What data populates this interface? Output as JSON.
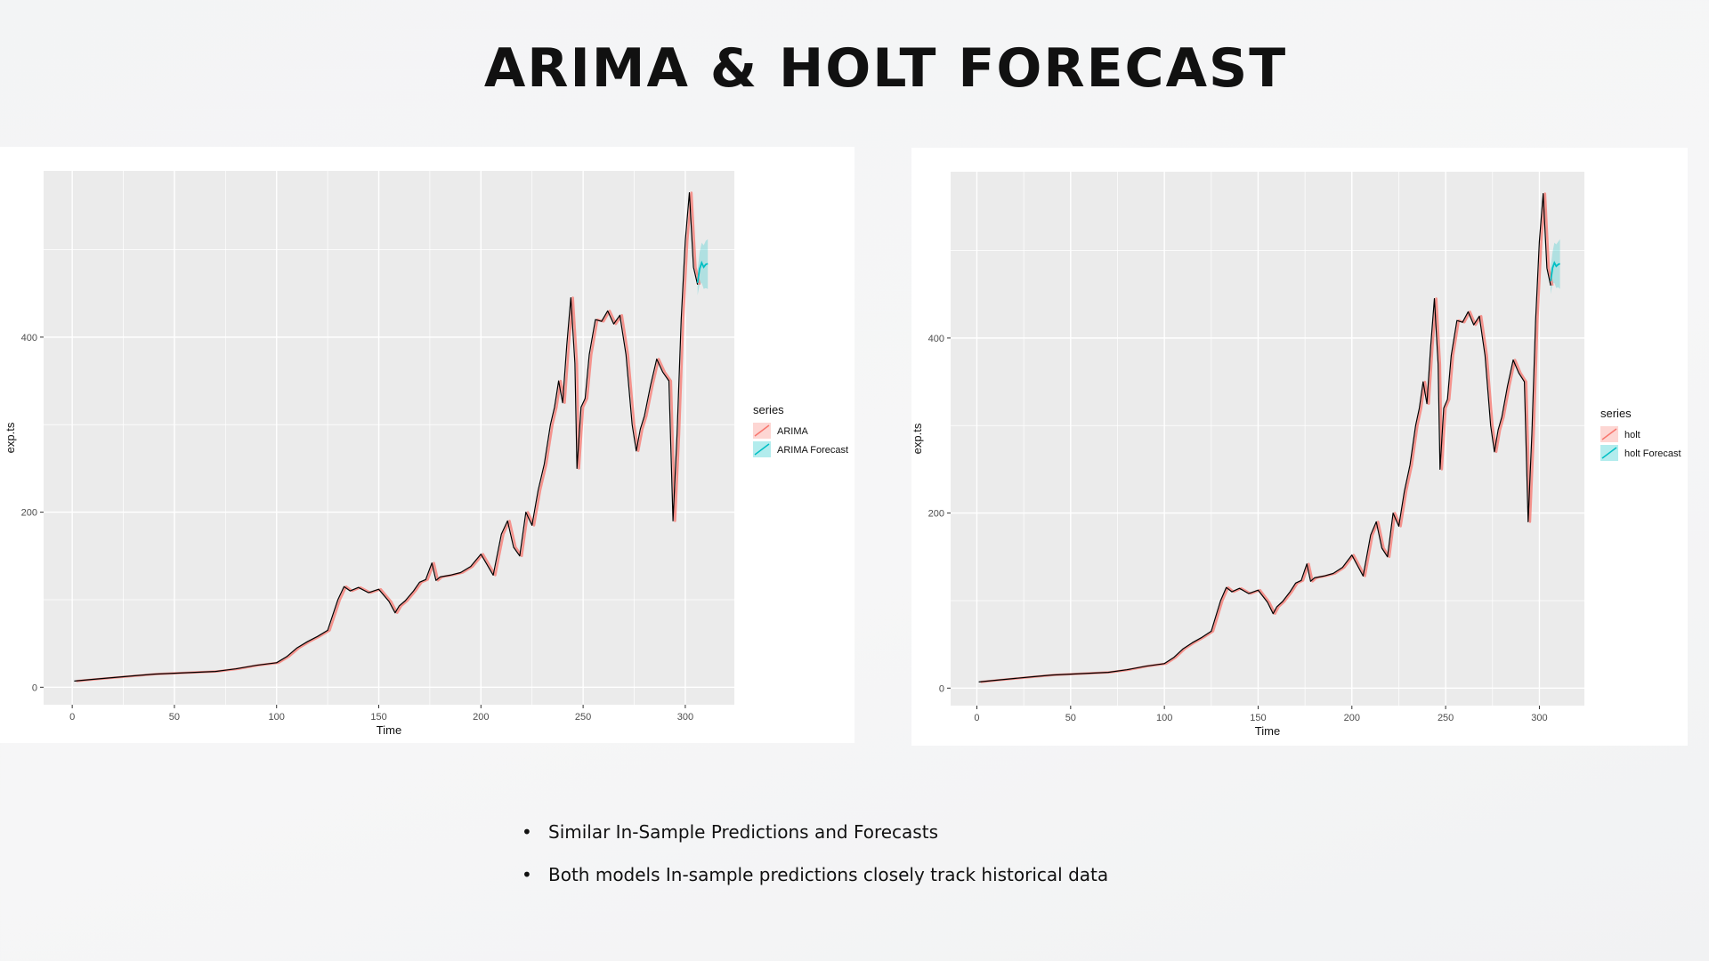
{
  "slide": {
    "title": "ARIMA & HOLT FORECAST",
    "bullets": [
      "Similar In-Sample Predictions and Forecasts",
      "Both models In-sample predictions closely track historical data"
    ]
  },
  "colors": {
    "fitted": "#F8766D",
    "forecast": "#00BFC4",
    "actual": "#000000",
    "panel_bg": "#EBEBEB",
    "grid": "#FFFFFF"
  },
  "chart_data": [
    {
      "type": "line",
      "xlabel": "Time",
      "ylabel": "exp.ts",
      "xlim": [
        -14,
        324
      ],
      "ylim": [
        -20,
        590
      ],
      "x_ticks": [
        0,
        50,
        100,
        150,
        200,
        250,
        300
      ],
      "y_ticks": [
        0,
        200,
        400
      ],
      "grid": true,
      "legend": {
        "title": "series",
        "position": "right",
        "entries": [
          "ARIMA",
          "ARIMA Forecast"
        ]
      },
      "actual": {
        "x": [
          1,
          10,
          20,
          30,
          40,
          50,
          60,
          70,
          80,
          90,
          100,
          105,
          110,
          115,
          120,
          125,
          130,
          133,
          136,
          140,
          145,
          150,
          155,
          158,
          160,
          163,
          167,
          170,
          173,
          176,
          178,
          180,
          185,
          190,
          195,
          200,
          203,
          206,
          210,
          213,
          216,
          219,
          222,
          225,
          228,
          231,
          234,
          236,
          238,
          240,
          242,
          244,
          246,
          247,
          249,
          251,
          253,
          256,
          259,
          262,
          265,
          268,
          271,
          274,
          276,
          278,
          280,
          283,
          286,
          289,
          292,
          294,
          296,
          298,
          300,
          302,
          304,
          306
        ],
        "y": [
          7,
          9,
          11,
          13,
          15,
          16,
          17,
          18,
          21,
          25,
          28,
          35,
          45,
          52,
          58,
          65,
          100,
          115,
          110,
          114,
          108,
          112,
          98,
          85,
          93,
          99,
          110,
          120,
          123,
          142,
          122,
          126,
          128,
          131,
          138,
          152,
          140,
          128,
          175,
          190,
          160,
          150,
          200,
          185,
          225,
          255,
          300,
          320,
          350,
          325,
          390,
          445,
          370,
          250,
          320,
          330,
          380,
          420,
          418,
          430,
          415,
          425,
          380,
          300,
          270,
          295,
          310,
          345,
          375,
          360,
          350,
          190,
          290,
          420,
          510,
          565,
          480,
          460
        ]
      },
      "fitted": {
        "x": [
          2,
          11,
          21,
          31,
          41,
          51,
          61,
          71,
          81,
          91,
          101,
          106,
          111,
          116,
          121,
          126,
          131,
          134,
          137,
          141,
          146,
          151,
          156,
          159,
          161,
          164,
          168,
          171,
          174,
          177,
          179,
          181,
          186,
          191,
          196,
          201,
          204,
          207,
          211,
          214,
          217,
          220,
          223,
          226,
          229,
          232,
          235,
          237,
          239,
          241,
          243,
          245,
          247,
          248,
          250,
          252,
          254,
          257,
          260,
          263,
          266,
          269,
          272,
          275,
          277,
          279,
          281,
          284,
          287,
          290,
          293,
          295,
          297,
          299,
          301,
          303,
          305,
          307
        ],
        "y": [
          7,
          9,
          11,
          13,
          15,
          16,
          17,
          18,
          21,
          25,
          28,
          35,
          45,
          52,
          58,
          65,
          100,
          115,
          110,
          114,
          108,
          112,
          98,
          85,
          93,
          99,
          110,
          120,
          123,
          142,
          122,
          126,
          128,
          131,
          138,
          152,
          140,
          128,
          175,
          190,
          160,
          150,
          200,
          185,
          225,
          255,
          300,
          320,
          350,
          325,
          390,
          445,
          370,
          250,
          320,
          330,
          380,
          420,
          418,
          430,
          415,
          425,
          380,
          300,
          270,
          295,
          310,
          345,
          375,
          360,
          350,
          190,
          290,
          420,
          510,
          565,
          480,
          460
        ]
      },
      "forecast": {
        "x": [
          306,
          307,
          308,
          309,
          310,
          311
        ],
        "y": [
          462,
          478,
          485,
          480,
          483,
          484
        ],
        "lower": [
          448,
          460,
          462,
          455,
          456,
          455
        ],
        "upper": [
          476,
          497,
          508,
          505,
          510,
          512
        ]
      }
    },
    {
      "type": "line",
      "xlabel": "Time",
      "ylabel": "exp.ts",
      "xlim": [
        -14,
        324
      ],
      "ylim": [
        -20,
        590
      ],
      "x_ticks": [
        0,
        50,
        100,
        150,
        200,
        250,
        300
      ],
      "y_ticks": [
        0,
        200,
        400
      ],
      "grid": true,
      "legend": {
        "title": "series",
        "position": "right",
        "entries": [
          "holt",
          "holt Forecast"
        ]
      },
      "actual": {
        "x": [
          1,
          10,
          20,
          30,
          40,
          50,
          60,
          70,
          80,
          90,
          100,
          105,
          110,
          115,
          120,
          125,
          130,
          133,
          136,
          140,
          145,
          150,
          155,
          158,
          160,
          163,
          167,
          170,
          173,
          176,
          178,
          180,
          185,
          190,
          195,
          200,
          203,
          206,
          210,
          213,
          216,
          219,
          222,
          225,
          228,
          231,
          234,
          236,
          238,
          240,
          242,
          244,
          246,
          247,
          249,
          251,
          253,
          256,
          259,
          262,
          265,
          268,
          271,
          274,
          276,
          278,
          280,
          283,
          286,
          289,
          292,
          294,
          296,
          298,
          300,
          302,
          304,
          306
        ],
        "y": [
          7,
          9,
          11,
          13,
          15,
          16,
          17,
          18,
          21,
          25,
          28,
          35,
          45,
          52,
          58,
          65,
          100,
          115,
          110,
          114,
          108,
          112,
          98,
          85,
          93,
          99,
          110,
          120,
          123,
          142,
          122,
          126,
          128,
          131,
          138,
          152,
          140,
          128,
          175,
          190,
          160,
          150,
          200,
          185,
          225,
          255,
          300,
          320,
          350,
          325,
          390,
          445,
          370,
          250,
          320,
          330,
          380,
          420,
          418,
          430,
          415,
          425,
          380,
          300,
          270,
          295,
          310,
          345,
          375,
          360,
          350,
          190,
          290,
          420,
          510,
          565,
          480,
          460
        ]
      },
      "fitted": {
        "x": [
          2,
          11,
          21,
          31,
          41,
          51,
          61,
          71,
          81,
          91,
          101,
          106,
          111,
          116,
          121,
          126,
          131,
          134,
          137,
          141,
          146,
          151,
          156,
          159,
          161,
          164,
          168,
          171,
          174,
          177,
          179,
          181,
          186,
          191,
          196,
          201,
          204,
          207,
          211,
          214,
          217,
          220,
          223,
          226,
          229,
          232,
          235,
          237,
          239,
          241,
          243,
          245,
          247,
          248,
          250,
          252,
          254,
          257,
          260,
          263,
          266,
          269,
          272,
          275,
          277,
          279,
          281,
          284,
          287,
          290,
          293,
          295,
          297,
          299,
          301,
          303,
          305,
          307
        ],
        "y": [
          7,
          9,
          11,
          13,
          15,
          16,
          17,
          18,
          21,
          25,
          28,
          35,
          45,
          52,
          58,
          65,
          100,
          115,
          110,
          114,
          108,
          112,
          98,
          85,
          93,
          99,
          110,
          120,
          123,
          142,
          122,
          126,
          128,
          131,
          138,
          152,
          140,
          128,
          175,
          190,
          160,
          150,
          200,
          185,
          225,
          255,
          300,
          320,
          350,
          325,
          390,
          445,
          370,
          250,
          320,
          330,
          380,
          420,
          418,
          430,
          415,
          425,
          380,
          300,
          270,
          295,
          310,
          345,
          375,
          360,
          350,
          190,
          290,
          420,
          510,
          565,
          480,
          460
        ]
      },
      "forecast": {
        "x": [
          306,
          307,
          308,
          309,
          310,
          311
        ],
        "y": [
          465,
          480,
          486,
          482,
          484,
          485
        ],
        "lower": [
          450,
          462,
          463,
          457,
          458,
          456
        ],
        "upper": [
          480,
          498,
          509,
          507,
          510,
          513
        ]
      }
    }
  ]
}
